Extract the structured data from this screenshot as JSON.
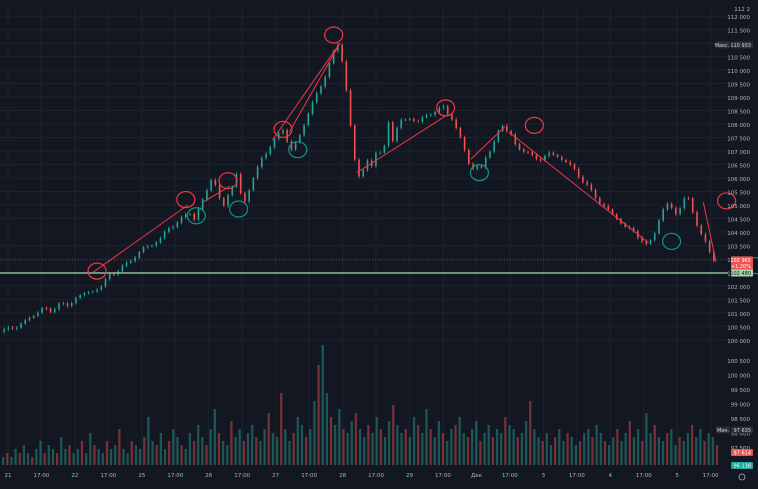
{
  "chart_data": {
    "type": "candlestick",
    "y_axis": {
      "ticks": [
        100000,
        100500,
        101000,
        101500,
        102000,
        102500,
        103000,
        103500,
        104000,
        104500,
        105000,
        105500,
        106000,
        106500,
        107000,
        107500,
        108000,
        108500,
        109000,
        109500,
        110000,
        110500,
        111000,
        111500,
        112000
      ],
      "tick_labels": [
        "100 000",
        "100 500",
        "101 000",
        "101 500",
        "102 000",
        "102 500",
        "103 000",
        "103 500",
        "104 000",
        "104 500",
        "105 000",
        "105 500",
        "106 000",
        "106 500",
        "107 000",
        "107 500",
        "108 000",
        "108 500",
        "109 000",
        "109 500",
        "110 000",
        "110 500",
        "111 000",
        "111 500",
        "112 000"
      ],
      "lower_ticks": [
        97500,
        98000,
        98500,
        99000,
        99500,
        100000,
        100500
      ],
      "lower_tick_labels": [
        "97 500",
        "98 000",
        "98 500",
        "99 000",
        "99 500",
        "100 000",
        "100 500"
      ],
      "top_label": "112 2"
    },
    "x_axis": {
      "labels": [
        "21",
        "17:00",
        "22",
        "17:00",
        "25",
        "17:00",
        "26",
        "17:00",
        "27",
        "17:00",
        "28",
        "17:00",
        "29",
        "17:00",
        "Дек",
        "17:00",
        "3",
        "17:00",
        "4",
        "17:00",
        "5",
        "17:00"
      ]
    },
    "price_labels": {
      "max_badge": {
        "text": "Макс.",
        "value": "110 933"
      },
      "current": {
        "value": "102 965",
        "change": "+1.20%",
        "time": "01:21"
      },
      "support": {
        "value": "102 480"
      },
      "min_badge": {
        "text": "Мин.",
        "value": "97 635"
      },
      "lower_red": "97 614",
      "lower_green": "96 138"
    },
    "price_path": [
      [
        0,
        100300
      ],
      [
        4,
        100400
      ],
      [
        8,
        100500
      ],
      [
        12,
        100700
      ],
      [
        16,
        100900
      ],
      [
        20,
        101200
      ],
      [
        24,
        101000
      ],
      [
        28,
        101400
      ],
      [
        32,
        101200
      ],
      [
        36,
        101600
      ],
      [
        40,
        101700
      ],
      [
        44,
        101800
      ],
      [
        48,
        102000
      ],
      [
        52,
        102400
      ],
      [
        56,
        102600
      ],
      [
        60,
        102800
      ],
      [
        64,
        103100
      ],
      [
        68,
        103400
      ],
      [
        72,
        103500
      ],
      [
        76,
        103800
      ],
      [
        80,
        104100
      ],
      [
        84,
        104400
      ],
      [
        88,
        104600
      ],
      [
        90,
        104700
      ],
      [
        92,
        104500
      ],
      [
        94,
        104800
      ],
      [
        96,
        105200
      ],
      [
        98,
        105600
      ],
      [
        100,
        105900
      ],
      [
        102,
        105700
      ],
      [
        104,
        105300
      ],
      [
        106,
        105000
      ],
      [
        108,
        105300
      ],
      [
        110,
        105700
      ],
      [
        112,
        106200
      ],
      [
        114,
        105400
      ],
      [
        116,
        105100
      ],
      [
        118,
        105600
      ],
      [
        120,
        106000
      ],
      [
        124,
        106700
      ],
      [
        128,
        107200
      ],
      [
        132,
        107600
      ],
      [
        134,
        107800
      ],
      [
        136,
        107400
      ],
      [
        138,
        107000
      ],
      [
        142,
        107600
      ],
      [
        146,
        108400
      ],
      [
        150,
        109100
      ],
      [
        154,
        109800
      ],
      [
        156,
        110200
      ],
      [
        158,
        110700
      ],
      [
        160,
        111000
      ],
      [
        162,
        110300
      ],
      [
        164,
        109200
      ],
      [
        166,
        108000
      ],
      [
        168,
        106700
      ],
      [
        170,
        106000
      ],
      [
        172,
        106300
      ],
      [
        174,
        106700
      ],
      [
        176,
        106400
      ],
      [
        178,
        106900
      ],
      [
        180,
        107000
      ],
      [
        182,
        107200
      ],
      [
        184,
        108000
      ],
      [
        186,
        107400
      ],
      [
        188,
        107900
      ],
      [
        190,
        108100
      ],
      [
        194,
        108200
      ],
      [
        198,
        108100
      ],
      [
        202,
        108300
      ],
      [
        206,
        108500
      ],
      [
        210,
        108600
      ],
      [
        212,
        108400
      ],
      [
        214,
        108200
      ],
      [
        216,
        107800
      ],
      [
        218,
        107500
      ],
      [
        220,
        107100
      ],
      [
        222,
        106500
      ],
      [
        224,
        106300
      ],
      [
        226,
        106500
      ],
      [
        228,
        106400
      ],
      [
        230,
        106700
      ],
      [
        232,
        107000
      ],
      [
        234,
        107400
      ],
      [
        236,
        107700
      ],
      [
        238,
        107900
      ],
      [
        240,
        107800
      ],
      [
        242,
        107600
      ],
      [
        244,
        107200
      ],
      [
        246,
        107100
      ],
      [
        248,
        107000
      ],
      [
        252,
        106800
      ],
      [
        256,
        106700
      ],
      [
        260,
        106900
      ],
      [
        264,
        106800
      ],
      [
        268,
        106600
      ],
      [
        272,
        106300
      ],
      [
        276,
        105900
      ],
      [
        280,
        105500
      ],
      [
        284,
        105100
      ],
      [
        288,
        104800
      ],
      [
        292,
        104500
      ],
      [
        296,
        104200
      ],
      [
        300,
        104000
      ],
      [
        304,
        103700
      ],
      [
        306,
        103500
      ],
      [
        308,
        103700
      ],
      [
        310,
        104000
      ],
      [
        312,
        104400
      ],
      [
        314,
        104800
      ],
      [
        316,
        105100
      ],
      [
        318,
        104900
      ],
      [
        320,
        104600
      ],
      [
        322,
        104900
      ],
      [
        324,
        105300
      ],
      [
        326,
        105200
      ],
      [
        328,
        104700
      ],
      [
        330,
        104300
      ],
      [
        332,
        103900
      ],
      [
        334,
        103600
      ],
      [
        336,
        103300
      ],
      [
        338,
        102965
      ]
    ],
    "path_end_index": 338,
    "annotations": {
      "resistance_level": 102480,
      "red_lines": [
        [
          [
            43,
            102500
          ],
          [
            88,
            105000
          ]
        ],
        [
          [
            95,
            105100
          ],
          [
            108,
            105700
          ]
        ],
        [
          [
            128,
            107400
          ],
          [
            160,
            111000
          ]
        ],
        [
          [
            136,
            107700
          ],
          [
            160,
            111000
          ]
        ],
        [
          [
            168,
            106200
          ],
          [
            210,
            108300
          ]
        ],
        [
          [
            222,
            106700
          ],
          [
            238,
            107900
          ]
        ],
        [
          [
            240,
            107700
          ],
          [
            306,
            103600
          ]
        ],
        [
          [
            332,
            105100
          ],
          [
            338,
            102900
          ]
        ]
      ],
      "red_circles": [
        [
          45,
          102550
        ],
        [
          87,
          105200
        ],
        [
          107,
          105900
        ],
        [
          133,
          107800
        ],
        [
          157,
          111300
        ],
        [
          210,
          108600
        ],
        [
          252,
          107950
        ],
        [
          343,
          105150
        ]
      ],
      "green_circles": [
        [
          92,
          104600
        ],
        [
          112,
          104850
        ],
        [
          140,
          107050
        ],
        [
          226,
          106200
        ],
        [
          317,
          103650
        ],
        [
          357,
          102750
        ]
      ]
    },
    "volume": [
      2,
      3,
      2,
      4,
      3,
      5,
      3,
      2,
      4,
      6,
      3,
      5,
      4,
      3,
      7,
      4,
      5,
      3,
      4,
      6,
      3,
      8,
      5,
      4,
      3,
      6,
      4,
      5,
      9,
      4,
      3,
      6,
      5,
      4,
      7,
      12,
      6,
      5,
      8,
      4,
      6,
      9,
      7,
      5,
      4,
      8,
      6,
      10,
      7,
      5,
      9,
      14,
      8,
      6,
      5,
      11,
      7,
      9,
      6,
      8,
      10,
      7,
      6,
      9,
      13,
      8,
      7,
      18,
      9,
      6,
      8,
      12,
      10,
      7,
      9,
      16,
      25,
      30,
      18,
      12,
      10,
      14,
      9,
      8,
      11,
      13,
      9,
      7,
      10,
      8,
      12,
      9,
      7,
      11,
      15,
      10,
      8,
      9,
      7,
      12,
      10,
      8,
      14,
      9,
      7,
      11,
      8,
      6,
      9,
      10,
      12,
      8,
      7,
      9,
      11,
      6,
      8,
      10,
      7,
      9,
      8,
      12,
      10,
      9,
      7,
      8,
      11,
      16,
      9,
      7,
      6,
      8,
      5,
      7,
      9,
      6,
      8,
      7,
      5,
      6,
      8,
      9,
      7,
      10,
      8,
      6,
      5,
      7,
      9,
      6,
      8,
      11,
      7,
      9,
      6,
      13,
      8,
      10,
      7,
      6,
      8,
      9,
      5,
      7,
      6,
      8,
      10,
      7,
      9,
      6,
      8,
      7,
      5
    ],
    "volume_max": 30,
    "colors": {
      "background": "#131722",
      "grid": "#1e222d",
      "up": "#26a69a",
      "down": "#ef5350",
      "annotation_red": "#f23645",
      "annotation_green": "#089981",
      "support_line": "#a5d6a7",
      "axis_text": "#b2b5be"
    }
  }
}
